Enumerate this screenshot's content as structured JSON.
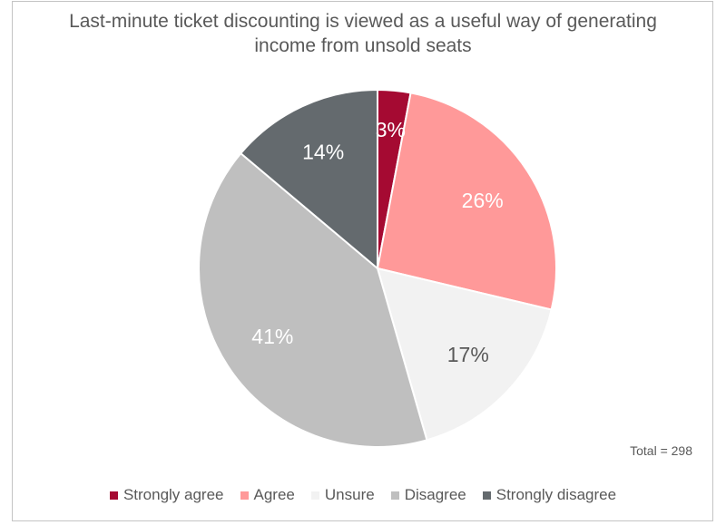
{
  "chart_data": {
    "type": "pie",
    "title": "Last-minute ticket discounting is viewed as a useful way of generating income from unsold seats",
    "title_lines": [
      "Last-minute ticket discounting is viewed as a useful way of generating",
      "income from unsold seats"
    ],
    "categories": [
      "Strongly agree",
      "Agree",
      "Unsure",
      "Disagree",
      "Strongly disagree"
    ],
    "values": [
      3,
      26,
      17,
      41,
      14
    ],
    "labels": [
      "3%",
      "26%",
      "17%",
      "41%",
      "14%"
    ],
    "colors": [
      "#a50a32",
      "#ff9999",
      "#f2f2f2",
      "#bfbfbf",
      "#646a6e"
    ],
    "label_colors": [
      "#ffffff",
      "#ffffff",
      "#595959",
      "#ffffff",
      "#ffffff"
    ],
    "annotation": "Total = 298",
    "legend_position": "bottom",
    "start_angle_deg": 0,
    "direction": "clockwise"
  }
}
